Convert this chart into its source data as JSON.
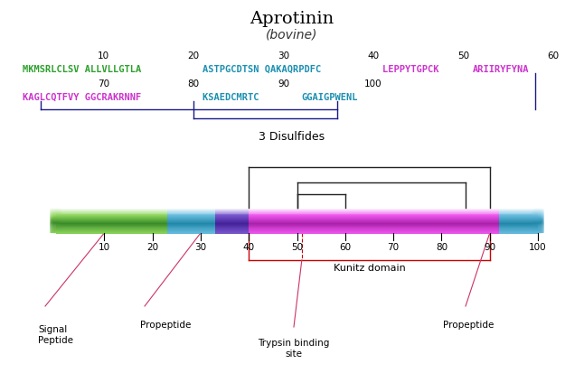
{
  "title": "Aprotinin",
  "subtitle": "(bovine)",
  "title_fontsize": 14,
  "subtitle_fontsize": 10,
  "ticks_line1": [
    10,
    20,
    30,
    40,
    50,
    60
  ],
  "ticks_line2": [
    70,
    80,
    90,
    100
  ],
  "disulfide_label": "3 Disulfides",
  "bracket_color": "#1a1a8c",
  "ann_color": "#cc3366",
  "dsulf_color": "#222222",
  "kunitz_color": "#cc0000",
  "green_dark": "#3a8c2a",
  "green_light": "#8cd45a",
  "blue_dark": "#2288aa",
  "blue_light": "#66bbdd",
  "purple_dark": "#442299",
  "purple_light": "#7755cc",
  "magenta_dark": "#aa22aa",
  "magenta_light": "#ee55ee"
}
